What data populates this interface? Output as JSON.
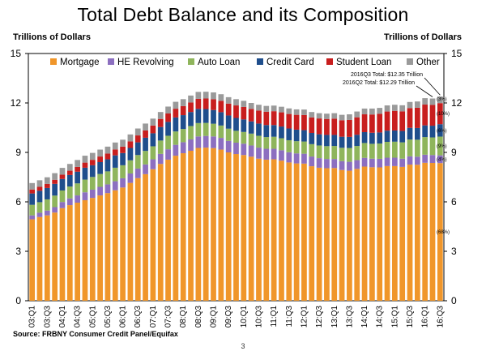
{
  "title": "Total Debt Balance and its Composition",
  "unit_left": "Trillions of Dollars",
  "unit_right": "Trillions of Dollars",
  "source": "Source: FRBNY Consumer Credit Panel/Equifax",
  "page_number": "3",
  "colors": {
    "Mortgage": "#f0962a",
    "HE Revolving": "#8c6fc0",
    "Auto Loan": "#8fb55c",
    "Credit Card": "#1f4e8c",
    "Student Loan": "#c81e1e",
    "Other": "#9a9a9a"
  },
  "chart_data": {
    "type": "bar",
    "stacked": true,
    "title": "Total Debt Balance and its Composition",
    "ylabel": "Trillions of Dollars",
    "ylim": [
      0,
      15
    ],
    "yticks": [
      0,
      3,
      6,
      9,
      12,
      15
    ],
    "grid": false,
    "legend_position": "top",
    "categories": [
      "03:Q1",
      "03:Q2",
      "03:Q3",
      "03:Q4",
      "04:Q1",
      "04:Q2",
      "04:Q3",
      "04:Q4",
      "05:Q1",
      "05:Q2",
      "05:Q3",
      "05:Q4",
      "06:Q1",
      "06:Q2",
      "06:Q3",
      "06:Q4",
      "07:Q1",
      "07:Q2",
      "07:Q3",
      "07:Q4",
      "08:Q1",
      "08:Q2",
      "08:Q3",
      "08:Q4",
      "09:Q1",
      "09:Q2",
      "09:Q3",
      "09:Q4",
      "10:Q1",
      "10:Q2",
      "10:Q3",
      "10:Q4",
      "11:Q1",
      "11:Q2",
      "11:Q3",
      "11:Q4",
      "12:Q1",
      "12:Q2",
      "12:Q3",
      "12:Q4",
      "13:Q1",
      "13:Q2",
      "13:Q3",
      "13:Q4",
      "14:Q1",
      "14:Q2",
      "14:Q3",
      "14:Q4",
      "15:Q1",
      "15:Q2",
      "15:Q3",
      "15:Q4",
      "16:Q1",
      "16:Q2",
      "16:Q3"
    ],
    "tick_labels": [
      "03:Q1",
      "03:Q3",
      "04:Q1",
      "04:Q3",
      "05:Q1",
      "05:Q3",
      "06:Q1",
      "06:Q3",
      "07:Q1",
      "07:Q3",
      "08:Q1",
      "08:Q3",
      "09:Q1",
      "09:Q3",
      "10:Q1",
      "10:Q3",
      "11:Q1",
      "11:Q3",
      "12:Q1",
      "12:Q3",
      "13:Q1",
      "13:Q3",
      "14:Q1",
      "14:Q3",
      "15:Q1",
      "15:Q3",
      "16:Q1",
      "16:Q3"
    ],
    "series": [
      {
        "name": "Mortgage",
        "values": [
          4.94,
          5.08,
          5.18,
          5.35,
          5.62,
          5.8,
          5.95,
          6.1,
          6.24,
          6.39,
          6.53,
          6.7,
          6.87,
          7.15,
          7.44,
          7.68,
          7.98,
          8.3,
          8.56,
          8.8,
          8.95,
          9.1,
          9.27,
          9.29,
          9.26,
          9.17,
          9.0,
          8.9,
          8.84,
          8.74,
          8.62,
          8.56,
          8.58,
          8.5,
          8.39,
          8.33,
          8.32,
          8.16,
          8.07,
          8.04,
          8.05,
          7.93,
          7.89,
          8.0,
          8.14,
          8.1,
          8.09,
          8.17,
          8.17,
          8.12,
          8.26,
          8.25,
          8.37,
          8.36,
          8.35
        ]
      },
      {
        "name": "HE Revolving",
        "values": [
          0.24,
          0.26,
          0.29,
          0.33,
          0.37,
          0.41,
          0.44,
          0.48,
          0.5,
          0.52,
          0.53,
          0.55,
          0.56,
          0.57,
          0.58,
          0.59,
          0.6,
          0.61,
          0.63,
          0.66,
          0.67,
          0.69,
          0.7,
          0.71,
          0.71,
          0.71,
          0.7,
          0.69,
          0.69,
          0.68,
          0.67,
          0.66,
          0.64,
          0.63,
          0.62,
          0.61,
          0.6,
          0.59,
          0.58,
          0.56,
          0.55,
          0.54,
          0.54,
          0.53,
          0.53,
          0.52,
          0.52,
          0.51,
          0.51,
          0.5,
          0.5,
          0.49,
          0.49,
          0.48,
          0.47
        ]
      },
      {
        "name": "Auto Loan",
        "values": [
          0.64,
          0.64,
          0.68,
          0.7,
          0.7,
          0.72,
          0.73,
          0.77,
          0.77,
          0.78,
          0.79,
          0.82,
          0.79,
          0.8,
          0.82,
          0.82,
          0.79,
          0.81,
          0.82,
          0.81,
          0.8,
          0.81,
          0.81,
          0.79,
          0.77,
          0.75,
          0.74,
          0.72,
          0.71,
          0.72,
          0.72,
          0.71,
          0.73,
          0.73,
          0.73,
          0.74,
          0.74,
          0.75,
          0.77,
          0.78,
          0.79,
          0.81,
          0.84,
          0.86,
          0.9,
          0.9,
          0.93,
          0.96,
          0.97,
          0.99,
          1.02,
          1.03,
          1.07,
          1.07,
          1.14
        ]
      },
      {
        "name": "Credit Card",
        "values": [
          0.69,
          0.69,
          0.69,
          0.71,
          0.7,
          0.7,
          0.71,
          0.72,
          0.71,
          0.72,
          0.73,
          0.75,
          0.74,
          0.75,
          0.77,
          0.8,
          0.79,
          0.82,
          0.84,
          0.85,
          0.84,
          0.85,
          0.86,
          0.84,
          0.83,
          0.81,
          0.8,
          0.78,
          0.76,
          0.74,
          0.74,
          0.73,
          0.71,
          0.71,
          0.71,
          0.7,
          0.69,
          0.68,
          0.68,
          0.68,
          0.67,
          0.67,
          0.67,
          0.68,
          0.66,
          0.67,
          0.67,
          0.68,
          0.68,
          0.69,
          0.71,
          0.71,
          0.71,
          0.71,
          0.75
        ]
      },
      {
        "name": "Student Loan",
        "values": [
          0.24,
          0.24,
          0.25,
          0.25,
          0.26,
          0.26,
          0.29,
          0.31,
          0.33,
          0.34,
          0.35,
          0.36,
          0.39,
          0.4,
          0.42,
          0.44,
          0.47,
          0.49,
          0.51,
          0.53,
          0.55,
          0.58,
          0.61,
          0.64,
          0.66,
          0.69,
          0.72,
          0.76,
          0.76,
          0.76,
          0.79,
          0.81,
          0.84,
          0.86,
          0.88,
          0.9,
          0.92,
          0.94,
          0.96,
          0.97,
          0.99,
          1.0,
          1.03,
          1.06,
          1.08,
          1.11,
          1.13,
          1.16,
          1.19,
          1.19,
          1.2,
          1.23,
          1.26,
          1.26,
          1.28
        ]
      },
      {
        "name": "Other",
        "values": [
          0.39,
          0.4,
          0.4,
          0.4,
          0.41,
          0.41,
          0.42,
          0.42,
          0.42,
          0.42,
          0.42,
          0.42,
          0.42,
          0.42,
          0.42,
          0.42,
          0.42,
          0.42,
          0.42,
          0.42,
          0.42,
          0.42,
          0.42,
          0.41,
          0.41,
          0.4,
          0.39,
          0.38,
          0.37,
          0.36,
          0.35,
          0.35,
          0.34,
          0.34,
          0.34,
          0.33,
          0.33,
          0.33,
          0.32,
          0.32,
          0.33,
          0.33,
          0.34,
          0.35,
          0.35,
          0.36,
          0.36,
          0.37,
          0.37,
          0.37,
          0.37,
          0.38,
          0.39,
          0.39,
          0.39
        ]
      }
    ],
    "annotations": [
      {
        "text": "2016Q3 Total: $12.35 Trillion",
        "target": "16:Q3"
      },
      {
        "text": "2016Q2 Total: $12.29 Trillion",
        "target": "16:Q2"
      }
    ],
    "share_labels": [
      {
        "series": "Other",
        "text": "(3%)"
      },
      {
        "series": "Student Loan",
        "text": "(10%)"
      },
      {
        "series": "Credit Card",
        "text": "(6%)"
      },
      {
        "series": "Auto Loan",
        "text": "(9%)"
      },
      {
        "series": "HE Revolving",
        "text": "(4%)"
      },
      {
        "series": "Mortgage",
        "text": "(68%)"
      }
    ]
  }
}
